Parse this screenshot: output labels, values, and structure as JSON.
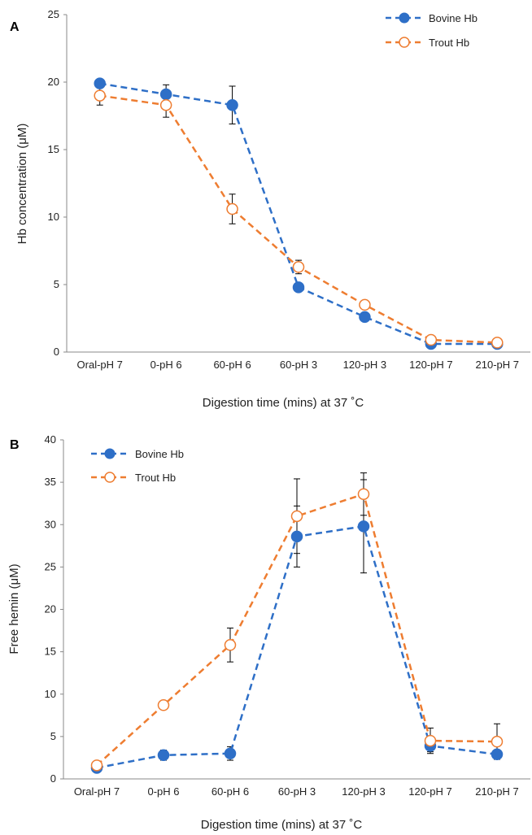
{
  "colors": {
    "bovine": "#2E6FC7",
    "trout": "#EE7D31",
    "errorbar": "#000000",
    "axis": "#888888"
  },
  "chart_data": [
    {
      "panel": "A",
      "type": "line",
      "xlabel": "Digestion time (mins) at 37 ˚C",
      "ylabel": "Hb concentration (μM)",
      "ylim": [
        0,
        25
      ],
      "yticks": [
        0,
        5,
        10,
        15,
        20,
        25
      ],
      "grid": false,
      "legend_position": "top-right",
      "categories": [
        "Oral-pH 7",
        "0-pH 6",
        "60-pH 6",
        "60-pH 3",
        "120-pH 3",
        "120-pH 7",
        "210-pH 7"
      ],
      "series": [
        {
          "name": "Bovine Hb",
          "marker": "filled-circle",
          "values": [
            19.9,
            19.1,
            18.3,
            4.8,
            2.6,
            0.6,
            0.6
          ],
          "errors": [
            0.0,
            0.7,
            1.4,
            0.3,
            0.2,
            0.1,
            0.1
          ]
        },
        {
          "name": "Trout Hb",
          "marker": "open-circle",
          "values": [
            19.0,
            18.3,
            10.6,
            6.3,
            3.5,
            0.9,
            0.7
          ],
          "errors": [
            0.7,
            0.9,
            1.1,
            0.5,
            0.2,
            0.1,
            0.1
          ]
        }
      ]
    },
    {
      "panel": "B",
      "type": "line",
      "xlabel": "Digestion time (mins) at 37 ˚C",
      "ylabel": "Free hemin (μM)",
      "ylim": [
        0,
        40
      ],
      "yticks": [
        0,
        5,
        10,
        15,
        20,
        25,
        30,
        35,
        40
      ],
      "grid": false,
      "legend_position": "top-left",
      "categories": [
        "Oral-pH 7",
        "0-pH 6",
        "60-pH 6",
        "60-pH 3",
        "120-pH 3",
        "120-pH 7",
        "210-pH 7"
      ],
      "series": [
        {
          "name": "Bovine Hb",
          "marker": "filled-circle",
          "values": [
            1.3,
            2.8,
            3.0,
            28.6,
            29.8,
            3.9,
            2.9
          ],
          "errors": [
            0.2,
            0.6,
            0.8,
            3.6,
            5.5,
            0.7,
            0.3
          ]
        },
        {
          "name": "Trout Hb",
          "marker": "open-circle",
          "values": [
            1.6,
            8.7,
            15.8,
            31.0,
            33.6,
            4.5,
            4.4
          ],
          "errors": [
            0.2,
            0.3,
            2.0,
            4.4,
            2.5,
            1.5,
            2.1
          ]
        }
      ]
    }
  ]
}
